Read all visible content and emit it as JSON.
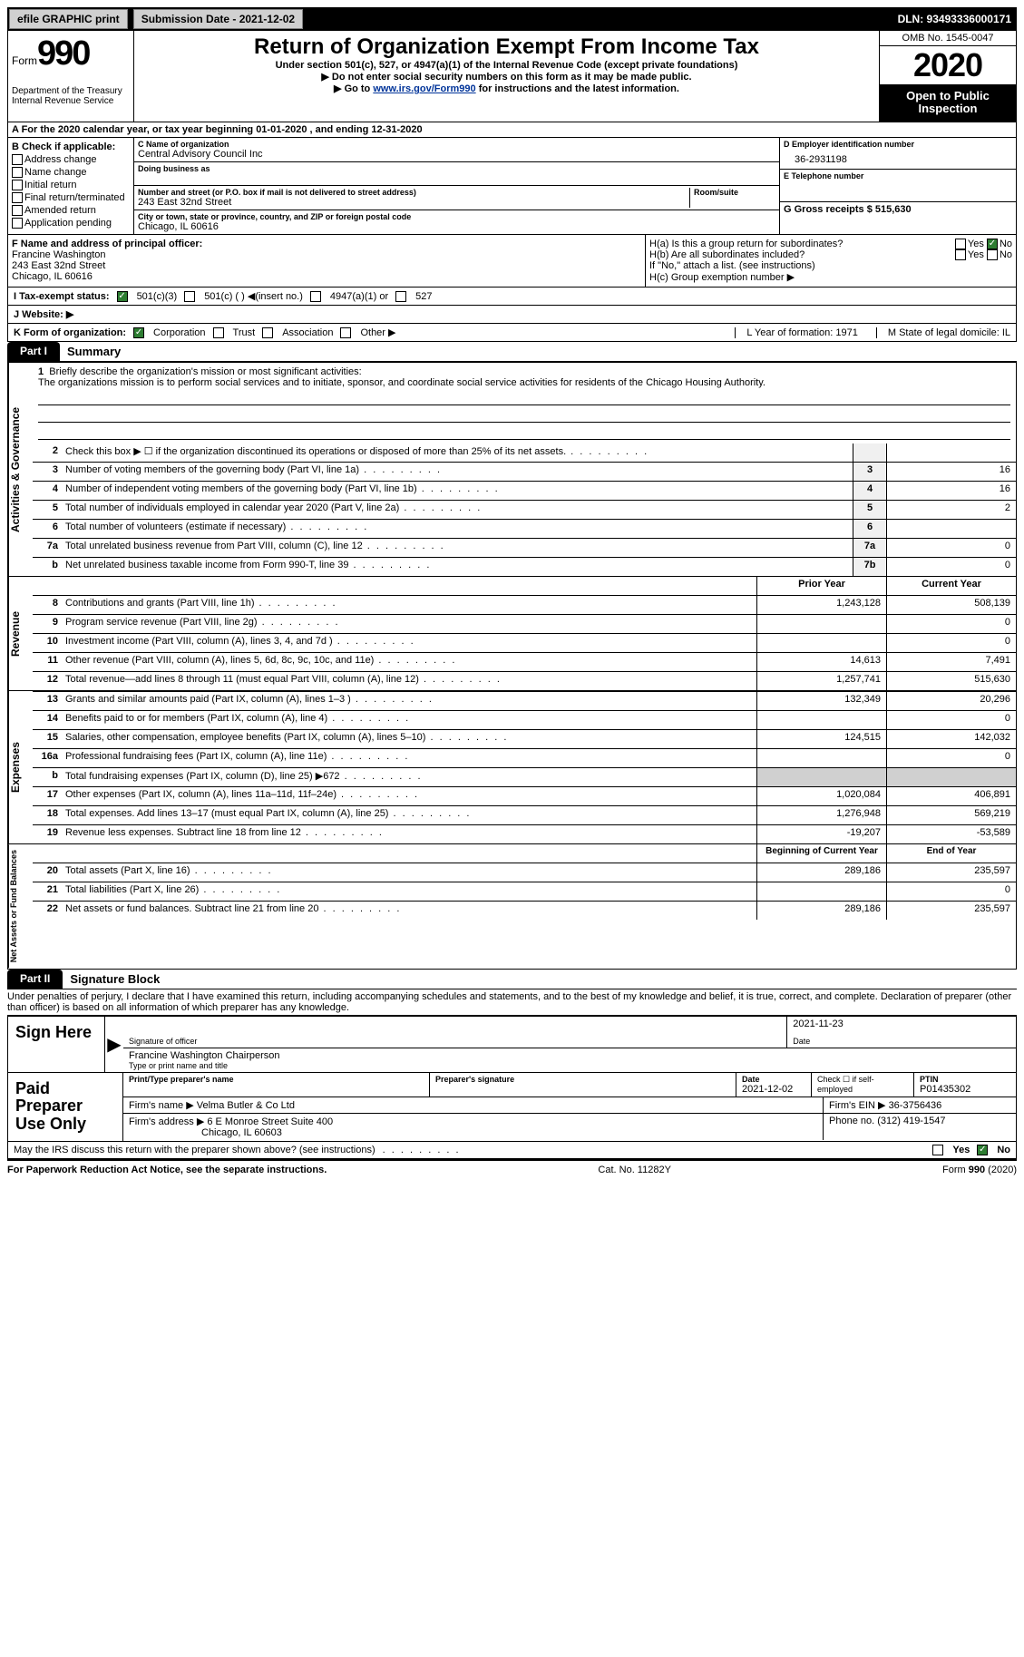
{
  "topbar": {
    "efile": "efile GRAPHIC print",
    "submission_label": "Submission Date - 2021-12-02",
    "dln_label": "DLN: 93493336000171"
  },
  "header": {
    "form_word": "Form",
    "form_num": "990",
    "dept": "Department of the Treasury Internal Revenue Service",
    "title": "Return of Organization Exempt From Income Tax",
    "sub1": "Under section 501(c), 527, or 4947(a)(1) of the Internal Revenue Code (except private foundations)",
    "sub2": "▶ Do not enter social security numbers on this form as it may be made public.",
    "sub3_pre": "▶ Go to ",
    "sub3_link": "www.irs.gov/Form990",
    "sub3_post": " for instructions and the latest information.",
    "omb": "OMB No. 1545-0047",
    "year": "2020",
    "inspect": "Open to Public Inspection"
  },
  "rowA": "A For the 2020 calendar year, or tax year beginning 01-01-2020   , and ending 12-31-2020",
  "colB": {
    "title": "B Check if applicable:",
    "items": [
      "Address change",
      "Name change",
      "Initial return",
      "Final return/terminated",
      "Amended return",
      "Application pending"
    ]
  },
  "colC": {
    "name_label": "C Name of organization",
    "name": "Central Advisory Council Inc",
    "dba_label": "Doing business as",
    "dba": "",
    "street_label": "Number and street (or P.O. box if mail is not delivered to street address)",
    "street": "243 East 32nd Street",
    "room_label": "Room/suite",
    "city_label": "City or town, state or province, country, and ZIP or foreign postal code",
    "city": "Chicago, IL  60616"
  },
  "colD": {
    "ein_label": "D Employer identification number",
    "ein": "36-2931198",
    "phone_label": "E Telephone number",
    "gross_label": "G Gross receipts $ 515,630"
  },
  "rowF": {
    "label": "F  Name and address of principal officer:",
    "name": "Francine Washington",
    "addr1": "243 East 32nd Street",
    "addr2": "Chicago, IL  60616"
  },
  "rowH": {
    "ha": "H(a)  Is this a group return for subordinates?",
    "ha_yes": "Yes",
    "ha_no": "No",
    "hb": "H(b)  Are all subordinates included?",
    "hb_yes": "Yes",
    "hb_no": "No",
    "hb_note": "If \"No,\" attach a list. (see instructions)",
    "hc": "H(c)  Group exemption number ▶"
  },
  "rowI": {
    "label": "I    Tax-exempt status:",
    "opts": [
      "501(c)(3)",
      "501(c) (  ) ◀(insert no.)",
      "4947(a)(1) or",
      "527"
    ]
  },
  "rowJ": {
    "label": "J   Website: ▶"
  },
  "rowK": {
    "label": "K Form of organization:",
    "opts": [
      "Corporation",
      "Trust",
      "Association",
      "Other ▶"
    ],
    "l": "L Year of formation: 1971",
    "m": "M State of legal domicile: IL"
  },
  "part1": {
    "tab": "Part I",
    "title": "Summary"
  },
  "mission": {
    "num": "1",
    "label": "Briefly describe the organization's mission or most significant activities:",
    "text": "The organizations mission is to perform social services and to initiate, sponsor, and coordinate social service activities for residents of the Chicago Housing Authority."
  },
  "governance": {
    "tab": "Activities & Governance",
    "lines": [
      {
        "n": "2",
        "t": "Check this box ▶ ☐  if the organization discontinued its operations or disposed of more than 25% of its net assets.",
        "cell": "",
        "val": ""
      },
      {
        "n": "3",
        "t": "Number of voting members of the governing body (Part VI, line 1a)",
        "cell": "3",
        "val": "16"
      },
      {
        "n": "4",
        "t": "Number of independent voting members of the governing body (Part VI, line 1b)",
        "cell": "4",
        "val": "16"
      },
      {
        "n": "5",
        "t": "Total number of individuals employed in calendar year 2020 (Part V, line 2a)",
        "cell": "5",
        "val": "2"
      },
      {
        "n": "6",
        "t": "Total number of volunteers (estimate if necessary)",
        "cell": "6",
        "val": ""
      },
      {
        "n": "7a",
        "t": "Total unrelated business revenue from Part VIII, column (C), line 12",
        "cell": "7a",
        "val": "0"
      },
      {
        "n": "b",
        "t": "Net unrelated business taxable income from Form 990-T, line 39",
        "cell": "7b",
        "val": "0"
      }
    ]
  },
  "twocol_hdr": {
    "prior": "Prior Year",
    "current": "Current Year"
  },
  "revenue": {
    "tab": "Revenue",
    "lines": [
      {
        "n": "8",
        "t": "Contributions and grants (Part VIII, line 1h)",
        "p": "1,243,128",
        "c": "508,139"
      },
      {
        "n": "9",
        "t": "Program service revenue (Part VIII, line 2g)",
        "p": "",
        "c": "0"
      },
      {
        "n": "10",
        "t": "Investment income (Part VIII, column (A), lines 3, 4, and 7d )",
        "p": "",
        "c": "0"
      },
      {
        "n": "11",
        "t": "Other revenue (Part VIII, column (A), lines 5, 6d, 8c, 9c, 10c, and 11e)",
        "p": "14,613",
        "c": "7,491"
      },
      {
        "n": "12",
        "t": "Total revenue—add lines 8 through 11 (must equal Part VIII, column (A), line 12)",
        "p": "1,257,741",
        "c": "515,630"
      }
    ]
  },
  "expenses": {
    "tab": "Expenses",
    "lines": [
      {
        "n": "13",
        "t": "Grants and similar amounts paid (Part IX, column (A), lines 1–3 )",
        "p": "132,349",
        "c": "20,296"
      },
      {
        "n": "14",
        "t": "Benefits paid to or for members (Part IX, column (A), line 4)",
        "p": "",
        "c": "0"
      },
      {
        "n": "15",
        "t": "Salaries, other compensation, employee benefits (Part IX, column (A), lines 5–10)",
        "p": "124,515",
        "c": "142,032"
      },
      {
        "n": "16a",
        "t": "Professional fundraising fees (Part IX, column (A), line 11e)",
        "p": "",
        "c": "0"
      },
      {
        "n": "b",
        "t": "Total fundraising expenses (Part IX, column (D), line 25) ▶672",
        "p": "shade",
        "c": "shade"
      },
      {
        "n": "17",
        "t": "Other expenses (Part IX, column (A), lines 11a–11d, 11f–24e)",
        "p": "1,020,084",
        "c": "406,891"
      },
      {
        "n": "18",
        "t": "Total expenses. Add lines 13–17 (must equal Part IX, column (A), line 25)",
        "p": "1,276,948",
        "c": "569,219"
      },
      {
        "n": "19",
        "t": "Revenue less expenses. Subtract line 18 from line 12",
        "p": "-19,207",
        "c": "-53,589"
      }
    ]
  },
  "balance_hdr": {
    "begin": "Beginning of Current Year",
    "end": "End of Year"
  },
  "netassets": {
    "tab": "Net Assets or Fund Balances",
    "lines": [
      {
        "n": "20",
        "t": "Total assets (Part X, line 16)",
        "p": "289,186",
        "c": "235,597"
      },
      {
        "n": "21",
        "t": "Total liabilities (Part X, line 26)",
        "p": "",
        "c": "0"
      },
      {
        "n": "22",
        "t": "Net assets or fund balances. Subtract line 21 from line 20",
        "p": "289,186",
        "c": "235,597"
      }
    ]
  },
  "part2": {
    "tab": "Part II",
    "title": "Signature Block"
  },
  "penalties": "Under penalties of perjury, I declare that I have examined this return, including accompanying schedules and statements, and to the best of my knowledge and belief, it is true, correct, and complete. Declaration of preparer (other than officer) is based on all information of which preparer has any knowledge.",
  "sign": {
    "left": "Sign Here",
    "sig_label": "Signature of officer",
    "date": "2021-11-23",
    "date_label": "Date",
    "name": "Francine Washington  Chairperson",
    "name_label": "Type or print name and title"
  },
  "preparer": {
    "left": "Paid Preparer Use Only",
    "print_label": "Print/Type preparer's name",
    "sig_label": "Preparer's signature",
    "date_label": "Date",
    "date": "2021-12-02",
    "check_label": "Check ☐ if self-employed",
    "ptin_label": "PTIN",
    "ptin": "P01435302",
    "firm_name_label": "Firm's name   ▶",
    "firm_name": "Velma Butler & Co Ltd",
    "ein_label": "Firm's EIN ▶",
    "ein": "36-3756436",
    "addr_label": "Firm's address ▶",
    "addr": "6 E Monroe Street Suite 400",
    "addr2": "Chicago, IL  60603",
    "phone_label": "Phone no.",
    "phone": "(312) 419-1547"
  },
  "discuss": {
    "q": "May the IRS discuss this return with the preparer shown above? (see instructions)",
    "yes": "Yes",
    "no": "No"
  },
  "footer": {
    "left": "For Paperwork Reduction Act Notice, see the separate instructions.",
    "mid": "Cat. No. 11282Y",
    "right": "Form 990 (2020)"
  }
}
